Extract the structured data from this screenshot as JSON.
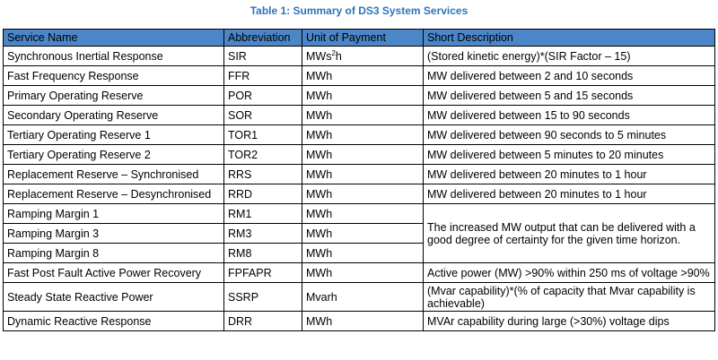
{
  "caption": "Table 1: Summary of DS3 System Services",
  "headers": [
    "Service Name",
    "Abbreviation",
    "Unit of Payment",
    "Short Description"
  ],
  "rows": [
    {
      "name": "Synchronous Inertial Response",
      "abbr": "SIR",
      "unit": "MWs",
      "unit_sup": "2",
      "unit_suffix": "h",
      "desc": "(Stored kinetic energy)*(SIR Factor – 15)"
    },
    {
      "name": "Fast Frequency Response",
      "abbr": "FFR",
      "unit": "MWh",
      "desc": "MW delivered between 2 and 10 seconds"
    },
    {
      "name": "Primary Operating Reserve",
      "abbr": "POR",
      "unit": "MWh",
      "desc": "MW delivered between 5 and 15 seconds"
    },
    {
      "name": "Secondary Operating Reserve",
      "abbr": "SOR",
      "unit": "MWh",
      "desc": "MW delivered between 15 to 90 seconds"
    },
    {
      "name": "Tertiary Operating Reserve 1",
      "abbr": "TOR1",
      "unit": "MWh",
      "desc": "MW delivered between 90 seconds to 5 minutes"
    },
    {
      "name": "Tertiary Operating Reserve 2",
      "abbr": "TOR2",
      "unit": "MWh",
      "desc": "MW delivered between 5 minutes to 20 minutes"
    },
    {
      "name": "Replacement Reserve – Synchronised",
      "abbr": "RRS",
      "unit": "MWh",
      "desc": "MW delivered between 20 minutes to 1 hour"
    },
    {
      "name": "Replacement Reserve – Desynchronised",
      "abbr": "RRD",
      "unit": "MWh",
      "desc": "MW delivered between 20 minutes to 1 hour"
    },
    {
      "name": "Ramping Margin 1",
      "abbr": "RM1",
      "unit": "MWh"
    },
    {
      "name": "Ramping Margin 3",
      "abbr": "RM3",
      "unit": "MWh"
    },
    {
      "name": "Ramping Margin 8",
      "abbr": "RM8",
      "unit": "MWh"
    },
    {
      "name": "Fast Post Fault Active Power Recovery",
      "abbr": "FPFAPR",
      "unit": "MWh",
      "desc": "Active power (MW) >90% within 250 ms of voltage >90%"
    },
    {
      "name": "Steady State Reactive Power",
      "abbr": "SSRP",
      "unit": "Mvarh",
      "desc": "(Mvar capability)*(% of capacity that Mvar capability is achievable)"
    },
    {
      "name": "Dynamic Reactive Response",
      "abbr": "DRR",
      "unit": "MWh",
      "desc": "MVAr capability during large (>30%) voltage dips"
    }
  ],
  "ramping_description": "The increased MW output that can be delivered with a good degree of certainty for the given time horizon.",
  "colors": {
    "header_bg": "#4A86C8",
    "caption": "#2E75B6"
  }
}
